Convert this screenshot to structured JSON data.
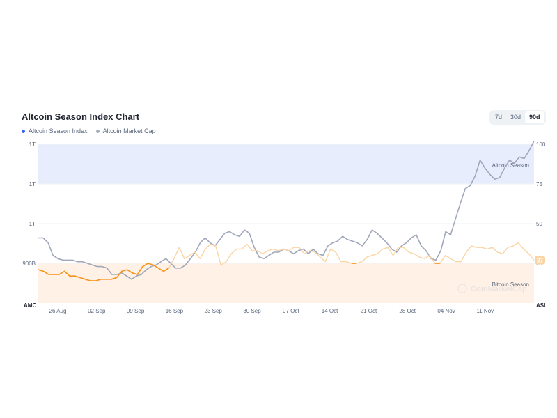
{
  "title": "Altcoin Season Index Chart",
  "legend": [
    {
      "label": "Altcoin Season Index",
      "color": "#3861fb"
    },
    {
      "label": "Altcoin Market Cap",
      "color": "#a6b0c3"
    }
  ],
  "ranges": [
    "7d",
    "30d",
    "90d"
  ],
  "active_range": "90d",
  "colors": {
    "altcoin_zone": "#e8edfd",
    "bitcoin_zone": "#fff1e6",
    "index_line": "#f7931a",
    "index_line_faded": "#fbd4a4",
    "market_cap_line": "#a1a7bb",
    "marker_bg": "#fbd4a4"
  },
  "zones": {
    "altcoin_label": "Altcoin Season",
    "bitcoin_label": "Bitcoin Season"
  },
  "watermark": "CoinMarketCap",
  "chart_data": {
    "type": "line",
    "x_ticks": [
      "26 Aug",
      "02 Sep",
      "09 Sep",
      "16 Sep",
      "23 Sep",
      "30 Sep",
      "07 Oct",
      "14 Oct",
      "21 Oct",
      "28 Oct",
      "04 Nov",
      "11 Nov"
    ],
    "left_axis": {
      "label": "AMC",
      "ticks": [
        "1T",
        "1T",
        "1T",
        "900B"
      ]
    },
    "right_axis": {
      "label": "ASI",
      "ticks": [
        100,
        75,
        50,
        25
      ],
      "ylim": [
        0,
        100
      ]
    },
    "altcoin_season_threshold": 75,
    "bitcoin_season_threshold": 25,
    "current_index_value": "27",
    "series": [
      {
        "name": "Altcoin Season Index",
        "axis": "right",
        "values": [
          21,
          20,
          18,
          18,
          18,
          20,
          17,
          17,
          16,
          15,
          14,
          14,
          15,
          15,
          15,
          16,
          20,
          21,
          19,
          18,
          23,
          25,
          24,
          22,
          20,
          22,
          28,
          35,
          28,
          30,
          32,
          28,
          34,
          37,
          36,
          24,
          26,
          31,
          34,
          34,
          37,
          33,
          33,
          31,
          33,
          34,
          33,
          34,
          33,
          35,
          35,
          31,
          33,
          32,
          29,
          26,
          34,
          32,
          26,
          26,
          25,
          25,
          26,
          29,
          30,
          31,
          34,
          35,
          30,
          35,
          35,
          32,
          31,
          29,
          28,
          30,
          25,
          25,
          30,
          28,
          26,
          26,
          32,
          36,
          35,
          35,
          34,
          35,
          32,
          31,
          35,
          36,
          38,
          34,
          31,
          27
        ]
      },
      {
        "name": "Altcoin Market Cap",
        "axis": "left",
        "values": [
          41,
          41,
          38,
          30,
          28,
          27,
          27,
          27,
          26,
          26,
          25,
          24,
          23,
          23,
          22,
          18,
          18,
          19,
          17,
          15,
          17,
          18,
          21,
          23,
          24,
          26,
          28,
          25,
          22,
          22,
          24,
          28,
          32,
          38,
          41,
          38,
          36,
          40,
          44,
          45,
          43,
          42,
          46,
          44,
          35,
          29,
          28,
          30,
          32,
          32,
          34,
          33,
          31,
          33,
          34,
          31,
          34,
          31,
          30,
          36,
          38,
          39,
          42,
          40,
          39,
          38,
          36,
          40,
          46,
          44,
          41,
          38,
          34,
          32,
          36,
          38,
          41,
          43,
          36,
          33,
          28,
          27,
          33,
          45,
          43,
          53,
          63,
          72,
          74,
          80,
          90,
          85,
          81,
          78,
          79,
          85,
          90,
          88,
          92,
          91,
          96,
          102
        ]
      }
    ]
  }
}
